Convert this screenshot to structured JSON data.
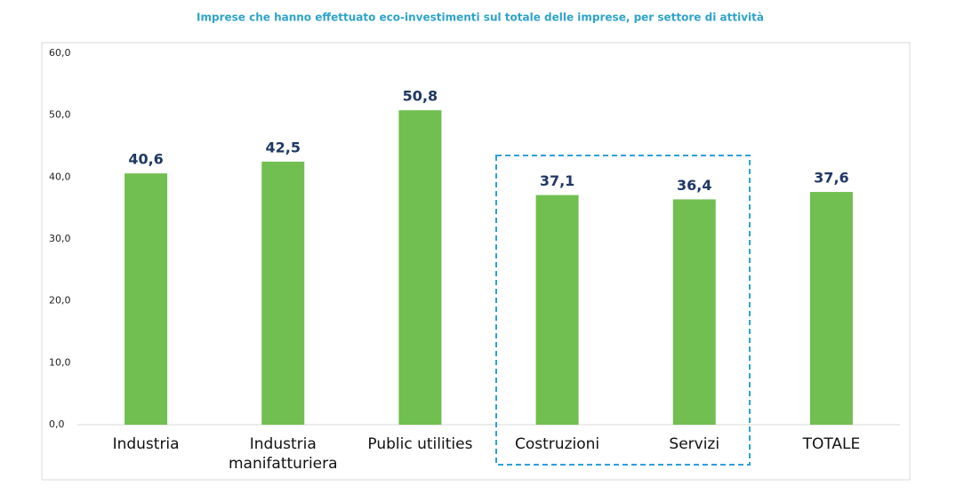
{
  "chart_data": {
    "type": "bar",
    "title": "Imprese che hanno effettuato eco-investimenti sul totale delle imprese, per settore di attività",
    "categories": [
      "Industria",
      "Industria manifatturiera",
      "Public utilities",
      "Costruzioni",
      "Servizi",
      "TOTALE"
    ],
    "values": [
      40.6,
      42.5,
      50.8,
      37.1,
      36.4,
      37.6
    ],
    "value_labels": [
      "40,6",
      "42,5",
      "50,8",
      "37,1",
      "36,4",
      "37,6"
    ],
    "color": "#70bf50",
    "ylim": [
      0,
      60
    ],
    "yticks": [
      {
        "value": 0,
        "label": "0,0"
      },
      {
        "value": 10,
        "label": "10,0"
      },
      {
        "value": 20,
        "label": "20,0"
      },
      {
        "value": 30,
        "label": "30,0"
      },
      {
        "value": 40,
        "label": "40,0"
      },
      {
        "value": 50,
        "label": "50,0"
      },
      {
        "value": 60,
        "label": "60,0"
      }
    ],
    "grid": false
  }
}
